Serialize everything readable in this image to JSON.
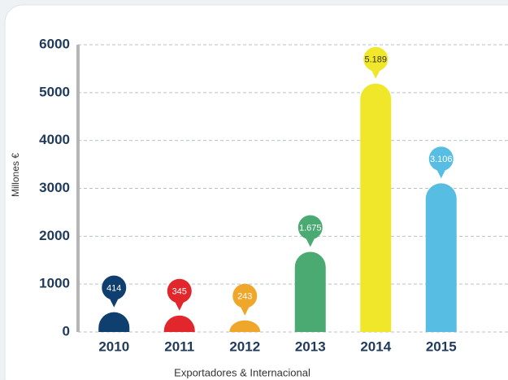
{
  "chart_data": {
    "type": "bar",
    "y_label": "Millones €",
    "x_label": "Exportadores & Internacional",
    "categories": [
      "2010",
      "2011",
      "2012",
      "2013",
      "2014",
      "2015"
    ],
    "values": [
      414,
      345,
      243,
      1675,
      5189,
      3106
    ],
    "value_labels": [
      "414",
      "345",
      "243",
      "1.675",
      "5.189",
      "3.106"
    ],
    "colors": [
      "#0f3f6e",
      "#e1262c",
      "#efa72b",
      "#4aaa72",
      "#f1e72a",
      "#58bde2"
    ],
    "ylim": [
      0,
      6000
    ],
    "yticks": [
      0,
      1000,
      2000,
      3000,
      4000,
      5000,
      6000
    ],
    "grid": true
  }
}
